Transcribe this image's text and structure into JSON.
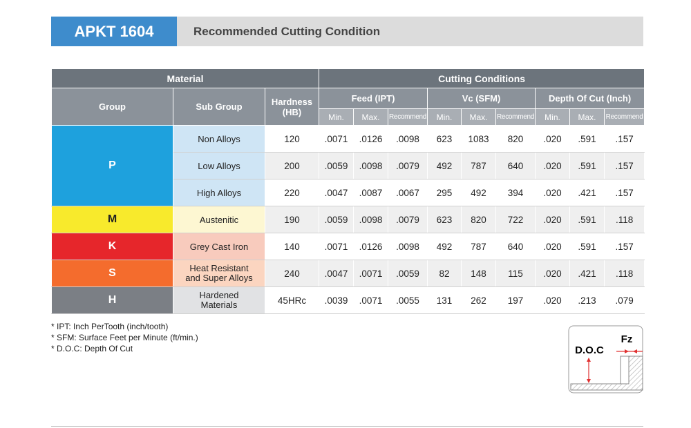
{
  "header": {
    "title": "APKT 1604",
    "subtitle": "Recommended Cutting Condition"
  },
  "table": {
    "top_headers": [
      "Material",
      "Cutting Conditions"
    ],
    "material_headers": [
      "Group",
      "Sub Group",
      "Hardness (HB)"
    ],
    "condition_groups": [
      {
        "name": "Feed (IPT)",
        "columns": [
          "Min.",
          "Max.",
          "Recommend"
        ]
      },
      {
        "name": "Vc (SFM)",
        "columns": [
          "Min.",
          "Max.",
          "Recommend"
        ]
      },
      {
        "name": "Depth Of Cut (Inch)",
        "columns": [
          "Min.",
          "Max.",
          "Recommend"
        ]
      }
    ],
    "groups": [
      {
        "name": "P",
        "color": "#1ea1dd",
        "sub_color": "#cfe5f5",
        "rows": [
          {
            "sub_group": "Non Alloys",
            "hardness": "120",
            "values": [
              ".0071",
              ".0126",
              ".0098",
              "623",
              "1083",
              "820",
              ".020",
              ".591",
              ".157"
            ]
          },
          {
            "sub_group": "Low Alloys",
            "hardness": "200",
            "values": [
              ".0059",
              ".0098",
              ".0079",
              "492",
              "787",
              "640",
              ".020",
              ".591",
              ".157"
            ]
          },
          {
            "sub_group": "High Alloys",
            "hardness": "220",
            "values": [
              ".0047",
              ".0087",
              ".0067",
              "295",
              "492",
              "394",
              ".020",
              ".421",
              ".157"
            ]
          }
        ]
      },
      {
        "name": "M",
        "color": "#f8ea2c",
        "sub_color": "#fdf7d2",
        "rows": [
          {
            "sub_group": "Austenitic",
            "hardness": "190",
            "values": [
              ".0059",
              ".0098",
              ".0079",
              "623",
              "820",
              "722",
              ".020",
              ".591",
              ".118"
            ]
          }
        ]
      },
      {
        "name": "K",
        "color": "#e6262b",
        "sub_color": "#f8cbbd",
        "rows": [
          {
            "sub_group": "Grey Cast Iron",
            "hardness": "140",
            "values": [
              ".0071",
              ".0126",
              ".0098",
              "492",
              "787",
              "640",
              ".020",
              ".591",
              ".157"
            ]
          }
        ]
      },
      {
        "name": "S",
        "color": "#f46c2d",
        "sub_color": "#fbd5c0",
        "rows": [
          {
            "sub_group": "Heat Resistant and Super Alloys",
            "hardness": "240",
            "values": [
              ".0047",
              ".0071",
              ".0059",
              "82",
              "148",
              "115",
              ".020",
              ".421",
              ".118"
            ]
          }
        ]
      },
      {
        "name": "H",
        "color": "#7b7f85",
        "sub_color": "#e1e2e4",
        "rows": [
          {
            "sub_group": "Hardened Materials",
            "hardness": "45HRc",
            "values": [
              ".0039",
              ".0071",
              ".0055",
              "131",
              "262",
              "197",
              ".020",
              ".213",
              ".079"
            ]
          }
        ]
      }
    ]
  },
  "notes": [
    "* IPT: Inch PerTooth (inch/tooth)",
    "* SFM: Surface Feet per Minute (ft/min.)",
    "* D.O.C: Depth Of Cut"
  ],
  "diagram": {
    "doc_label": "D.O.C",
    "fz_label": "Fz"
  }
}
